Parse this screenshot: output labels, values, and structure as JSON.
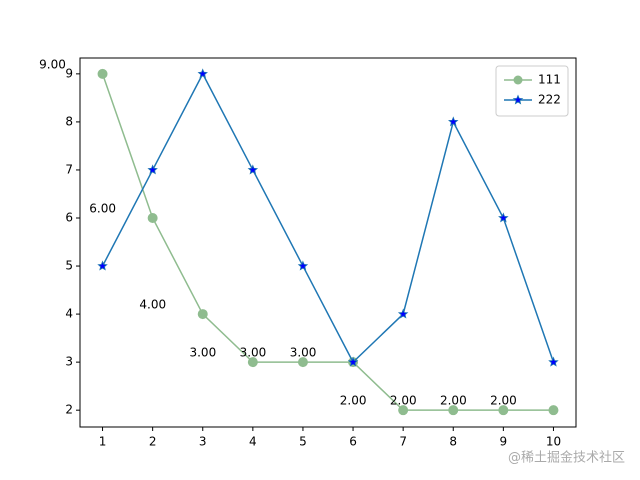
{
  "chart_data": {
    "type": "line",
    "x": [
      1,
      2,
      3,
      4,
      5,
      6,
      7,
      8,
      9,
      10
    ],
    "series": [
      {
        "name": "111",
        "color": "#8fbc8f",
        "marker": "circle",
        "marker_color": "#8fbc8f",
        "values": [
          9,
          6,
          4,
          3,
          3,
          3,
          2,
          2,
          2,
          2
        ],
        "value_labels": [
          "9.00",
          "6.00",
          "4.00",
          "3.00",
          "3.00",
          "3.00",
          "2.00",
          "2.00",
          "2.00",
          "2.00"
        ]
      },
      {
        "name": "222",
        "color": "#1f77b4",
        "marker": "star",
        "marker_color": "#0000ff",
        "values": [
          5,
          7,
          9,
          7,
          5,
          3,
          4,
          8,
          6,
          3
        ]
      }
    ],
    "xlim": [
      0.55,
      10.45
    ],
    "ylim": [
      1.65,
      9.33
    ],
    "xticks": [
      1,
      2,
      3,
      4,
      5,
      6,
      7,
      8,
      9,
      10
    ],
    "yticks": [
      2,
      3,
      4,
      5,
      6,
      7,
      8,
      9
    ],
    "legend": "upper right",
    "grid": false,
    "watermark": "@稀土掘金技术社区"
  }
}
